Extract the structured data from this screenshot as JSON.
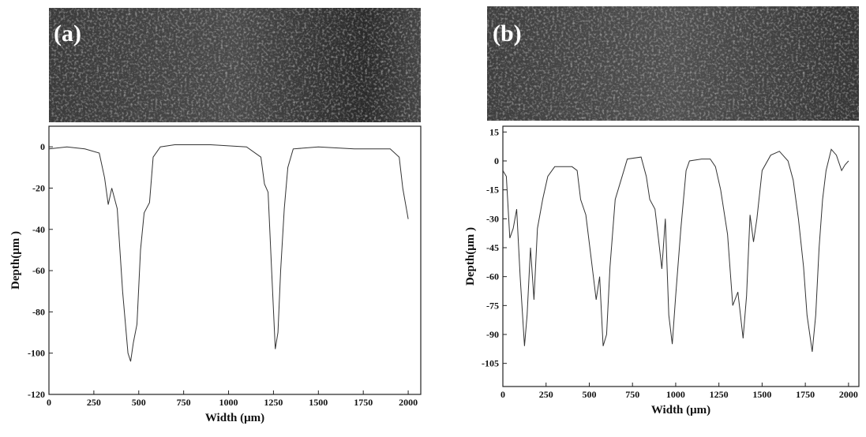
{
  "chart_data": [
    {
      "type": "line",
      "panel_label": "(a)",
      "xlabel": "Width (μm)",
      "ylabel": "Depth(μm )",
      "xlim": [
        0,
        2070
      ],
      "ylim": [
        -120,
        10
      ],
      "xticks": [
        0,
        250,
        500,
        750,
        1000,
        1250,
        1500,
        1750,
        2000
      ],
      "yticks": [
        0,
        -20,
        -40,
        -60,
        -80,
        -100,
        -120
      ],
      "x": [
        0,
        100,
        200,
        280,
        310,
        330,
        350,
        380,
        410,
        440,
        455,
        470,
        490,
        510,
        530,
        560,
        580,
        620,
        700,
        900,
        1100,
        1180,
        1200,
        1220,
        1240,
        1260,
        1275,
        1290,
        1310,
        1330,
        1360,
        1500,
        1700,
        1900,
        1950,
        1970,
        1990,
        2000
      ],
      "series": [
        {
          "color": "#333333",
          "values": [
            -1,
            0,
            -1,
            -3,
            -15,
            -28,
            -20,
            -30,
            -70,
            -100,
            -104,
            -95,
            -86,
            -50,
            -32,
            -27,
            -5,
            0,
            1,
            1,
            0,
            -5,
            -18,
            -22,
            -60,
            -98,
            -90,
            -60,
            -30,
            -10,
            -1,
            0,
            -1,
            -1,
            -5,
            -20,
            -30,
            -35
          ]
        }
      ]
    },
    {
      "type": "line",
      "panel_label": "(b)",
      "xlabel": "Width (μm)",
      "ylabel": "Depth(μm )",
      "xlim": [
        0,
        2060
      ],
      "ylim": [
        -117,
        18
      ],
      "xticks": [
        0,
        250,
        500,
        750,
        1000,
        1250,
        1500,
        1750,
        2000
      ],
      "yticks": [
        15,
        0,
        -15,
        -30,
        -45,
        -60,
        -75,
        -90,
        -105
      ],
      "x": [
        0,
        20,
        40,
        60,
        80,
        100,
        125,
        140,
        160,
        180,
        200,
        230,
        260,
        300,
        350,
        400,
        430,
        450,
        480,
        510,
        540,
        560,
        580,
        600,
        620,
        650,
        700,
        720,
        800,
        830,
        850,
        880,
        900,
        920,
        940,
        960,
        980,
        1000,
        1030,
        1060,
        1080,
        1150,
        1200,
        1230,
        1260,
        1300,
        1330,
        1360,
        1390,
        1410,
        1430,
        1450,
        1470,
        1500,
        1550,
        1600,
        1650,
        1680,
        1710,
        1740,
        1760,
        1790,
        1810,
        1830,
        1850,
        1870,
        1900,
        1930,
        1960,
        1980,
        2000
      ],
      "series": [
        {
          "color": "#333333",
          "values": [
            -5,
            -8,
            -40,
            -35,
            -25,
            -60,
            -96,
            -80,
            -45,
            -72,
            -35,
            -20,
            -8,
            -3,
            -3,
            -3,
            -5,
            -20,
            -28,
            -50,
            -72,
            -60,
            -96,
            -90,
            -55,
            -20,
            -5,
            1,
            2,
            -8,
            -20,
            -25,
            -40,
            -56,
            -30,
            -80,
            -95,
            -70,
            -35,
            -5,
            0,
            1,
            1,
            -3,
            -15,
            -38,
            -75,
            -68,
            -92,
            -70,
            -28,
            -42,
            -30,
            -5,
            3,
            5,
            0,
            -10,
            -30,
            -55,
            -80,
            -99,
            -80,
            -45,
            -20,
            -5,
            6,
            3,
            -5,
            -2,
            0
          ]
        }
      ]
    }
  ]
}
